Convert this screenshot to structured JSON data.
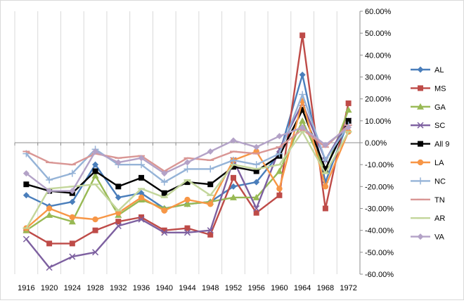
{
  "chart_data": {
    "type": "line",
    "title": "",
    "xlabel": "",
    "ylabel": "",
    "categories": [
      "1916",
      "1920",
      "1924",
      "1928",
      "1932",
      "1936",
      "1940",
      "1944",
      "1948",
      "1952",
      "1956",
      "1960",
      "1964",
      "1968",
      "1972"
    ],
    "ylim": [
      -60,
      60
    ],
    "ytick_step": 10,
    "y_axis_side": "right",
    "ytick_labels": [
      "60.00%",
      "50.00%",
      "40.00%",
      "30.00%",
      "20.00%",
      "10.00%",
      "0.00%",
      "-10.00%",
      "-20.00%",
      "-30.00%",
      "-40.00%",
      "-50.00%",
      "-60.00%"
    ],
    "grid": "vertical",
    "legend_position": "right",
    "series": [
      {
        "name": "AL",
        "color": "#4a7ebb",
        "marker": "diamond",
        "values": [
          -24,
          -29,
          -27,
          -10,
          -25,
          -23,
          -30,
          -28,
          -27,
          -20,
          -18,
          -5,
          31,
          -18,
          10
        ]
      },
      {
        "name": "MS",
        "color": "#be4b48",
        "marker": "square",
        "values": [
          -40,
          -46,
          -46,
          -40,
          -36,
          -34,
          -40,
          -39,
          -42,
          -16,
          -32,
          -24,
          49,
          -30,
          18
        ]
      },
      {
        "name": "GA",
        "color": "#98b954",
        "marker": "triangle",
        "values": [
          -40,
          -33,
          -36,
          -15,
          -33,
          -26,
          -30,
          -28,
          -27,
          -25,
          -25,
          -13,
          10,
          -13,
          15
        ]
      },
      {
        "name": "SC",
        "color": "#7d60a0",
        "marker": "x",
        "values": [
          -44,
          -57,
          -52,
          -50,
          -38,
          -35,
          -41,
          -41,
          -40,
          -8,
          -30,
          -3,
          18,
          -8,
          10
        ]
      },
      {
        "name": "All 9",
        "color": "#000000",
        "marker": "square",
        "values": [
          -19,
          -22,
          -23,
          -13,
          -20,
          -16,
          -23,
          -18,
          -19,
          -11,
          -13,
          -6,
          15,
          -12,
          10
        ]
      },
      {
        "name": "LA",
        "color": "#f79646",
        "marker": "circle",
        "values": [
          -39,
          -30,
          -34,
          -35,
          -32,
          -25,
          -31,
          -26,
          -28,
          -8,
          -4,
          -21,
          19,
          -20,
          5
        ]
      },
      {
        "name": "NC",
        "color": "#95b3d7",
        "marker": "plus",
        "values": [
          -5,
          -17,
          -14,
          -3,
          -10,
          -10,
          -18,
          -12,
          -12,
          -8,
          -10,
          -5,
          22,
          -8,
          8
        ]
      },
      {
        "name": "TN",
        "color": "#d99694",
        "marker": "dash",
        "values": [
          -4,
          -9,
          -10,
          -5,
          -7,
          -6,
          -13,
          -7,
          -8,
          -4,
          -5,
          -2,
          6,
          -2,
          8
        ]
      },
      {
        "name": "AR",
        "color": "#c3d69b",
        "marker": "dash",
        "values": [
          -39,
          -21,
          -20,
          -19,
          -31,
          -21,
          -25,
          -17,
          -24,
          -10,
          -12,
          -10,
          5,
          -14,
          5
        ]
      },
      {
        "name": "VA",
        "color": "#b3a2c7",
        "marker": "diamond",
        "values": [
          -14,
          -22,
          -22,
          -4,
          -9,
          -7,
          -14,
          -9,
          -4,
          1,
          -2,
          3,
          7,
          -1,
          7
        ]
      }
    ]
  }
}
